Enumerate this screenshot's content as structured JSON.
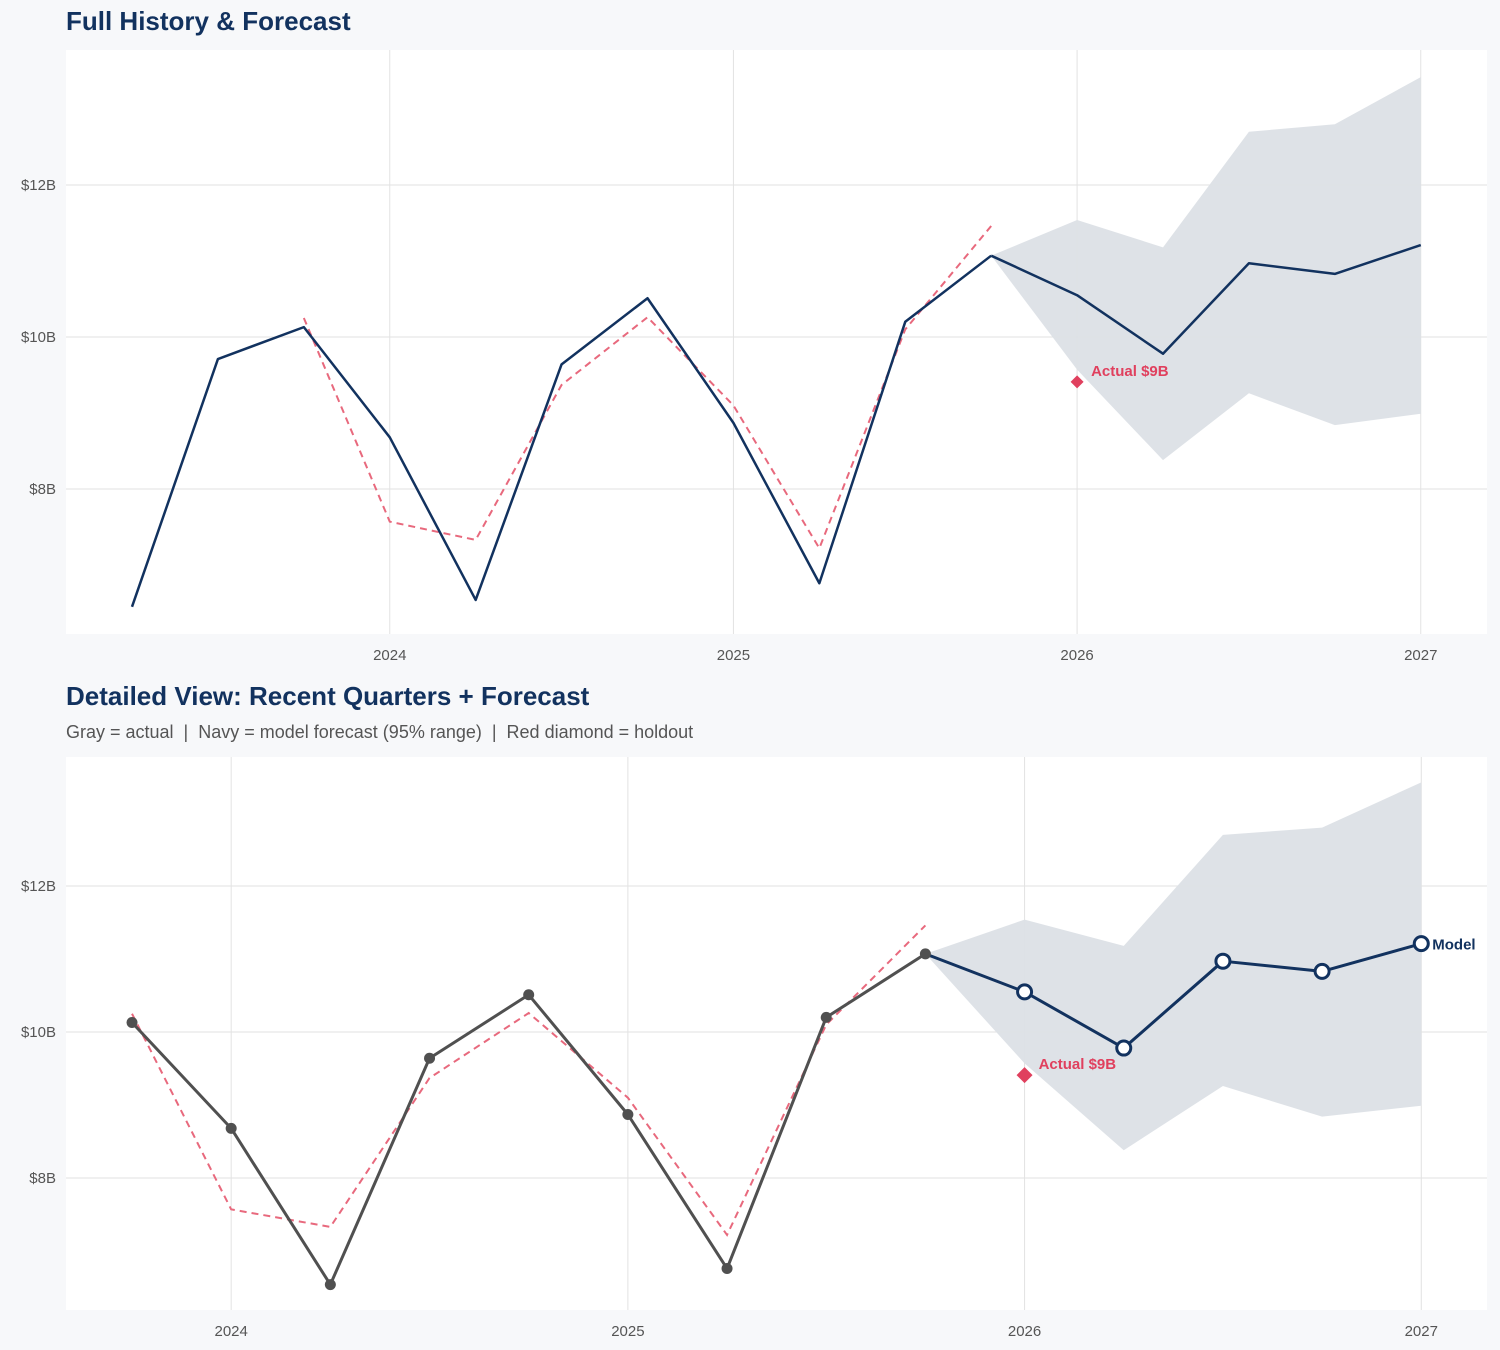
{
  "chart_data": [
    {
      "type": "line",
      "title": "Full History & Forecast",
      "xlabel": "",
      "ylabel": "",
      "x_ticks": [
        "2024",
        "2025",
        "2026",
        "2027"
      ],
      "y_ticks": [
        "$8B",
        "$10B",
        "$12B"
      ],
      "y_tick_values": [
        8,
        10,
        12
      ],
      "ylim": [
        6.2,
        13.9
      ],
      "xlim": [
        "2023-02",
        "2027-03"
      ],
      "grid": true,
      "colors": {
        "history": "#12325f",
        "forecast": "#12325f",
        "fitted": "#e8697d",
        "band": "#dce0e6",
        "holdout": "#e0405e"
      },
      "series": [
        {
          "style": "solid",
          "x": [
            "2023-04",
            "2023-07",
            "2023-10",
            "2024-01",
            "2024-04",
            "2024-07",
            "2024-10",
            "2025-01",
            "2025-04",
            "2025-07",
            "2025-10"
          ],
          "values": [
            6.45,
            9.71,
            10.13,
            8.68,
            6.54,
            9.64,
            10.51,
            8.87,
            6.76,
            10.2,
            11.07
          ]
        },
        {
          "style": "solid",
          "x": [
            "2025-10",
            "2026-01",
            "2026-04",
            "2026-07",
            "2026-10",
            "2027-01"
          ],
          "values": [
            11.07,
            10.55,
            9.78,
            10.97,
            10.83,
            11.21
          ]
        },
        {
          "style": "dashed",
          "x": [
            "2023-10",
            "2024-01",
            "2024-04",
            "2024-07",
            "2024-10",
            "2025-01",
            "2025-04",
            "2025-07",
            "2025-10"
          ],
          "values": [
            10.25,
            7.57,
            7.33,
            9.37,
            10.26,
            9.1,
            7.22,
            10.1,
            11.46
          ]
        }
      ],
      "band": {
        "x": [
          "2025-10",
          "2026-01",
          "2026-04",
          "2026-07",
          "2026-10",
          "2027-01"
        ],
        "upper": [
          11.07,
          11.54,
          11.18,
          12.7,
          12.8,
          13.42
        ],
        "lower": [
          11.07,
          9.57,
          8.38,
          9.26,
          8.84,
          8.99
        ]
      },
      "holdout": {
        "x": "2026-01",
        "value": 9.41,
        "label": "Actual $9B"
      }
    },
    {
      "type": "line",
      "title": "Detailed View: Recent Quarters + Forecast",
      "subtitle": "Gray = actual  |  Navy = model forecast (95% range)  |  Red diamond = holdout",
      "xlabel": "",
      "ylabel": "",
      "x_ticks": [
        "2024",
        "2025",
        "2026",
        "2027"
      ],
      "y_ticks": [
        "$8B",
        "$10B",
        "$12B"
      ],
      "y_tick_values": [
        8,
        10,
        12
      ],
      "ylim": [
        6.2,
        13.8
      ],
      "xlim": [
        "2023-08",
        "2027-03"
      ],
      "grid": true,
      "colors": {
        "actual": "#505050",
        "forecast": "#12325f",
        "fitted": "#e8697d",
        "band": "#dce0e6",
        "holdout": "#e0405e"
      },
      "series": [
        {
          "style": "solid-markers",
          "x": [
            "2023-10",
            "2024-01",
            "2024-04",
            "2024-07",
            "2024-10",
            "2025-01",
            "2025-04",
            "2025-07",
            "2025-10"
          ],
          "values": [
            10.13,
            8.68,
            6.54,
            9.64,
            10.51,
            8.87,
            6.76,
            10.2,
            11.07
          ]
        },
        {
          "style": "open-markers",
          "name": "Model",
          "x": [
            "2025-10",
            "2026-01",
            "2026-04",
            "2026-07",
            "2026-10",
            "2027-01"
          ],
          "values": [
            11.07,
            10.55,
            9.78,
            10.97,
            10.83,
            11.21
          ]
        },
        {
          "style": "dashed",
          "x": [
            "2023-10",
            "2024-01",
            "2024-04",
            "2024-07",
            "2024-10",
            "2025-01",
            "2025-04",
            "2025-07",
            "2025-10"
          ],
          "values": [
            10.25,
            7.57,
            7.33,
            9.37,
            10.26,
            9.1,
            7.22,
            10.1,
            11.46
          ]
        }
      ],
      "band": {
        "x": [
          "2025-10",
          "2026-01",
          "2026-04",
          "2026-07",
          "2026-10",
          "2027-01"
        ],
        "upper": [
          11.07,
          11.54,
          11.18,
          12.7,
          12.8,
          13.42
        ],
        "lower": [
          11.07,
          9.57,
          8.38,
          9.26,
          8.84,
          8.99
        ]
      },
      "holdout": {
        "x": "2026-01",
        "value": 9.41,
        "label": "Actual $9B"
      }
    }
  ]
}
